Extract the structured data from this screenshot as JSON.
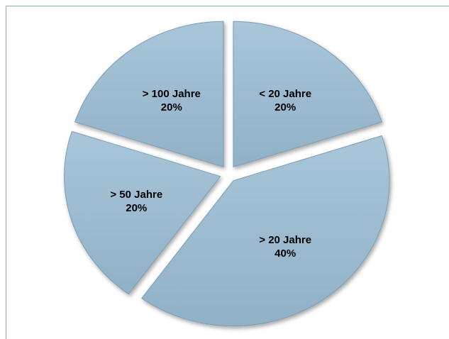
{
  "chart_data": {
    "type": "pie",
    "categories": [
      "< 20 Jahre",
      "> 20 Jahre",
      "> 50 Jahre",
      "> 100 Jahre"
    ],
    "values": [
      20,
      40,
      20,
      20
    ],
    "value_labels": [
      "20%",
      "40%",
      "20%",
      "20%"
    ],
    "color": "#9dbcd1"
  }
}
